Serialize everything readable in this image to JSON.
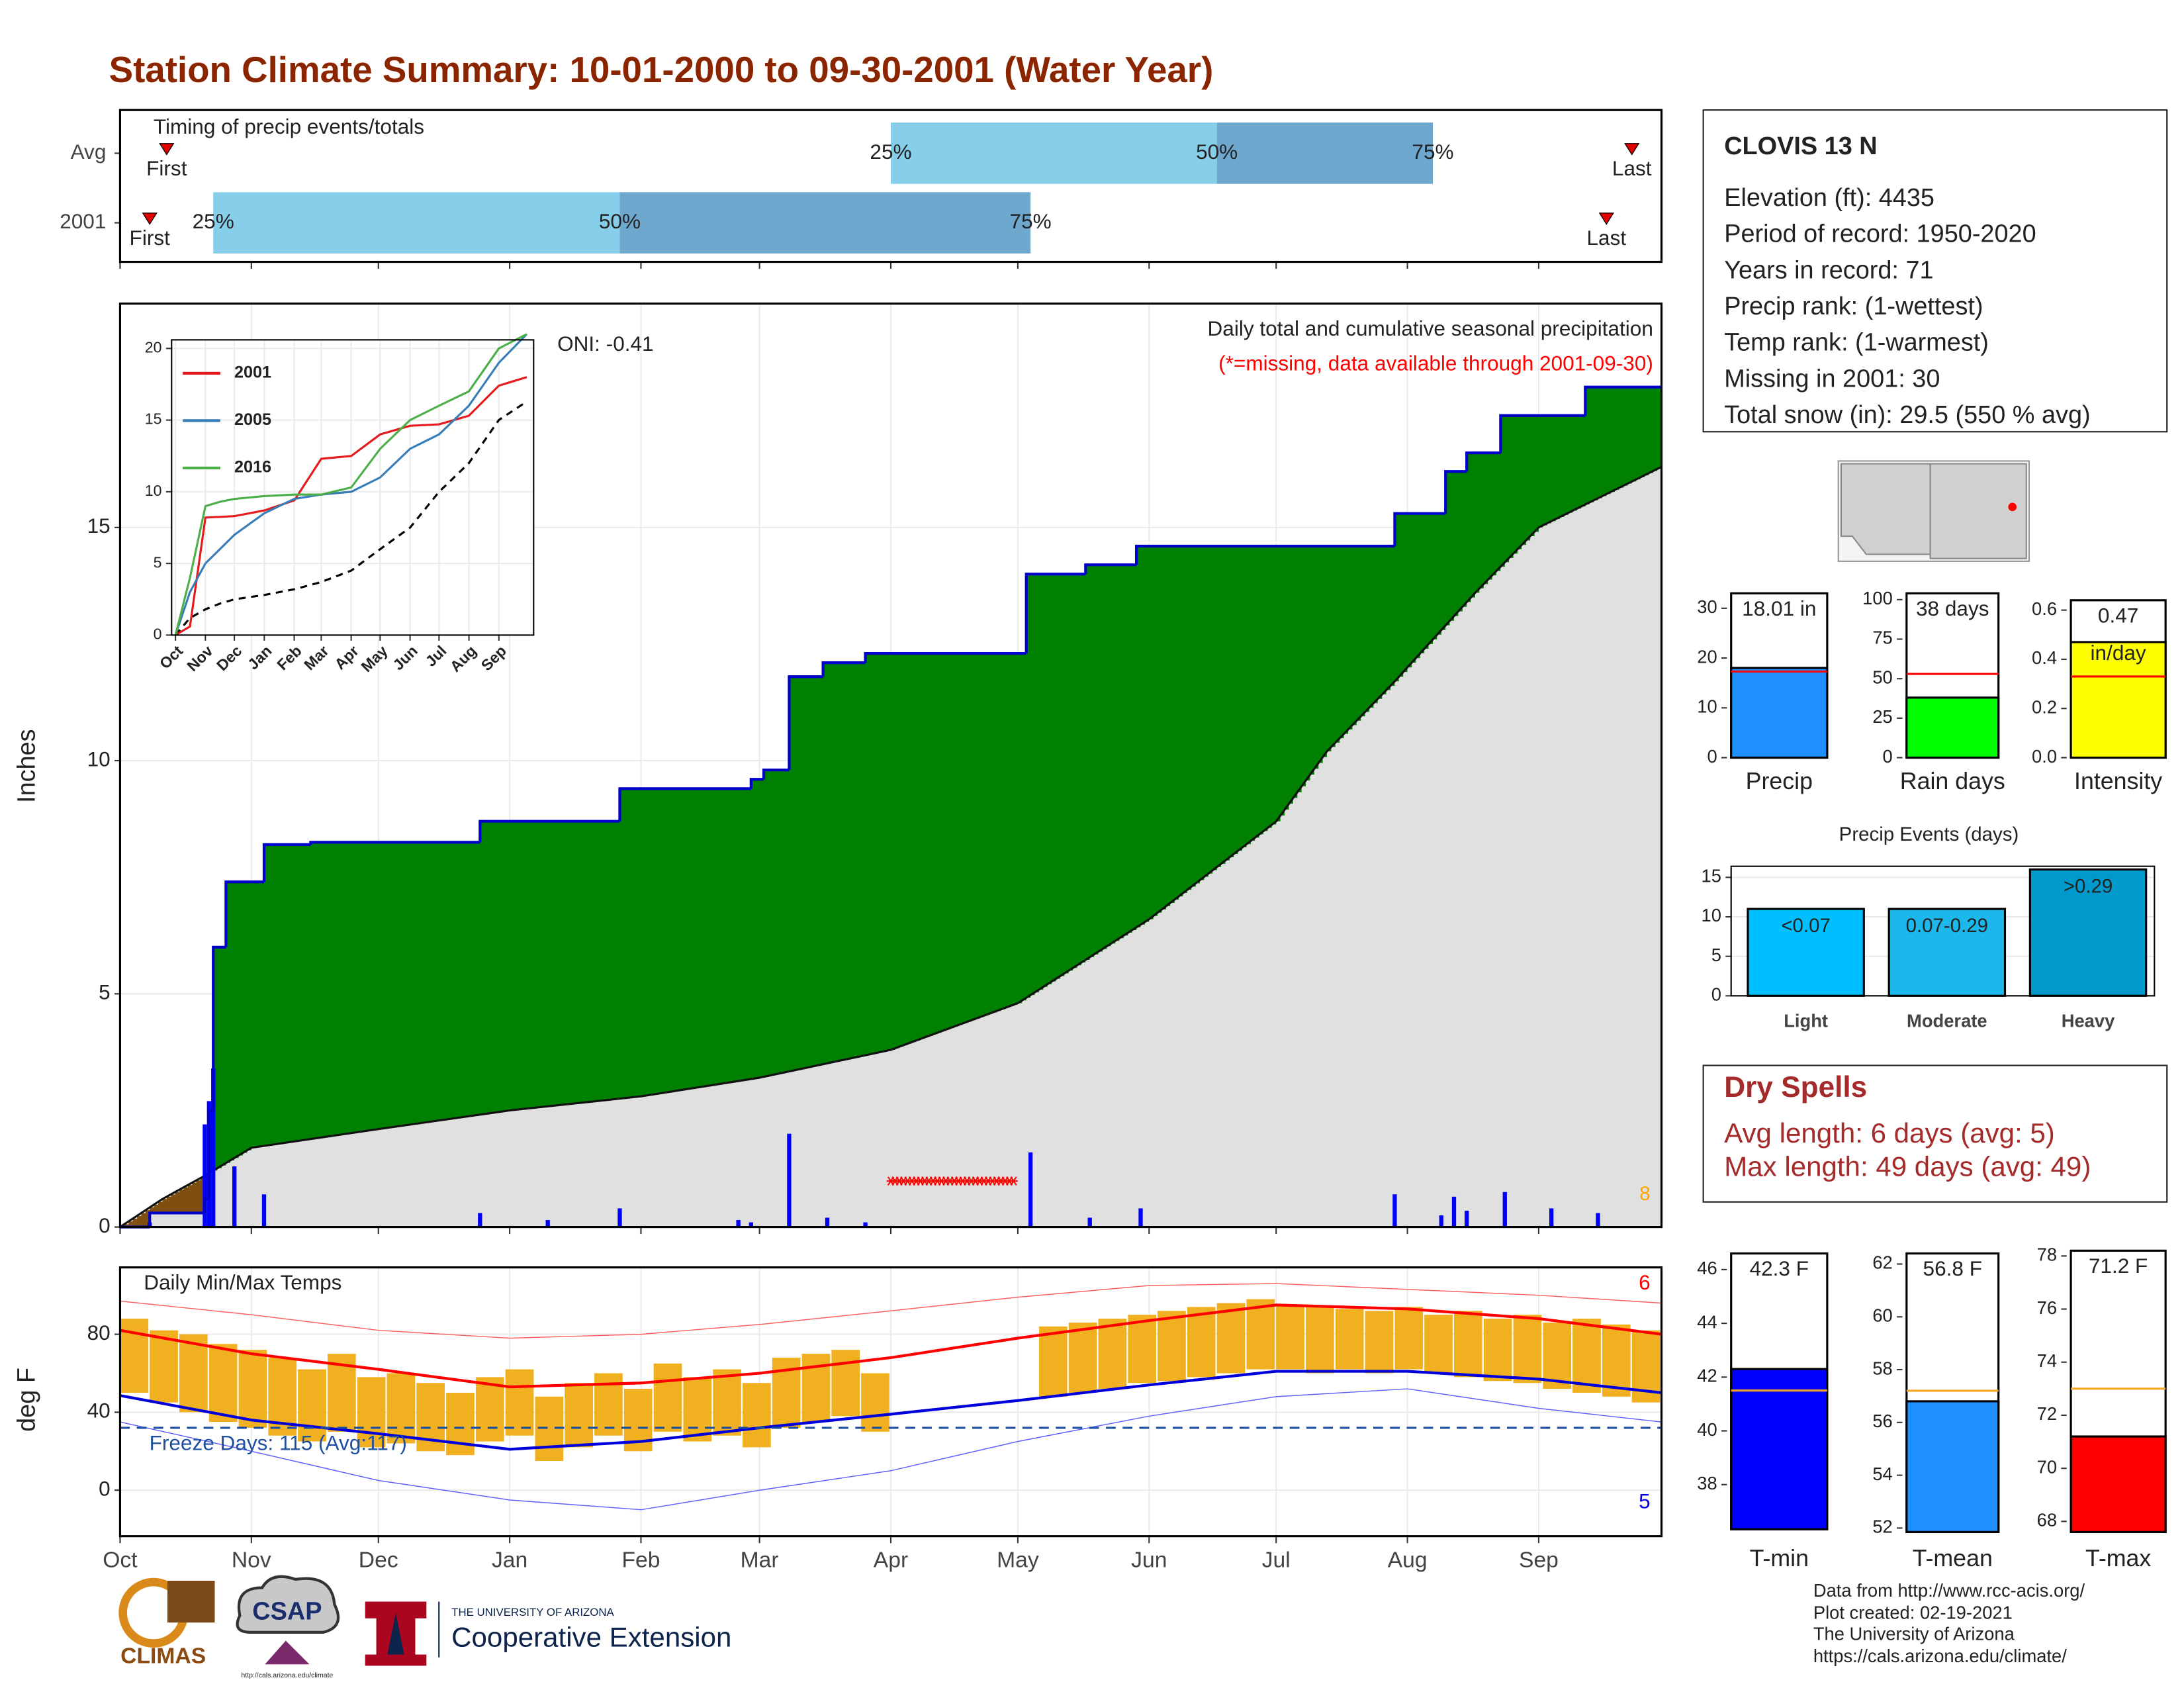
{
  "title": "Station Climate Summary: 10-01-2000 to 09-30-2001 (Water Year)",
  "station": {
    "name": "CLOVIS 13 N",
    "lines": [
      "Elevation (ft): 4435",
      "Period of record: 1950-2020",
      "Years in record: 71",
      "Precip rank:  (1-wettest)",
      "Temp rank:  (1-warmest)",
      "Missing in 2001: 30",
      "Total snow (in): 29.5 (550 % avg)"
    ]
  },
  "dry_spells": {
    "title": "Dry Spells",
    "lines": [
      "Avg length: 6 days (avg: 5)",
      "Max length: 49 days (avg: 49)"
    ]
  },
  "footer": {
    "lines": [
      "Data from http://www.rcc-acis.org/",
      "Plot created: 02-19-2021",
      "The University of Arizona",
      "https://cals.arizona.edu/climate/"
    ]
  },
  "logos": {
    "climas": "CLIMAS",
    "csap": "CSAP",
    "csap_url": "http://cals.arizona.edu/climate",
    "ua": "THE UNIVERSITY OF ARIZONA",
    "ext": "Cooperative Extension"
  },
  "chart_data": [
    {
      "type": "timing",
      "title": "Timing of precip events/totals",
      "xlim": [
        0,
        364
      ],
      "rows": [
        {
          "label": "Avg",
          "first": 11,
          "p25": 182,
          "p50": 259,
          "p75": 310,
          "last": 357
        },
        {
          "label": "2001",
          "first": 7,
          "p25": 22,
          "p50": 118,
          "p75": 215,
          "last": 351
        }
      ],
      "marker_labels": {
        "first": "First",
        "last": "Last",
        "p25": "25%",
        "p50": "50%",
        "p75": "75%"
      },
      "colors": [
        "#87ceeb",
        "#6fa8cf"
      ],
      "marker_color": "#e00000"
    },
    {
      "type": "cumulative_precip",
      "title": "Daily total and cumulative seasonal precipitation",
      "subtitle": "(*=missing, data available through 2001-09-30)",
      "annotation": "ONI: -0.41",
      "corner_note": "8",
      "y_label": "Inches",
      "xlim": [
        0,
        364
      ],
      "ylim": [
        0,
        19.8
      ],
      "yticks": [
        0,
        5,
        10,
        15
      ],
      "grid": true,
      "cumulative": {
        "color": "#0000cd",
        "fill": "#008000",
        "x": [
          0,
          7,
          20,
          21,
          22,
          25,
          34,
          45,
          85,
          118,
          149,
          152,
          158,
          166,
          176,
          214,
          228,
          240,
          301,
          313,
          318,
          326,
          346
        ],
        "values": [
          0,
          0.3,
          0.6,
          2.5,
          6.0,
          7.4,
          8.2,
          8.25,
          8.7,
          9.4,
          9.6,
          9.8,
          11.8,
          12.1,
          12.3,
          14.0,
          14.2,
          14.6,
          15.3,
          16.2,
          16.6,
          17.4,
          18.01
        ]
      },
      "average": {
        "color": "#111111",
        "fill": "#e0e0e0",
        "deficit_fill": "#7f4f12",
        "x": [
          0,
          10,
          20,
          31,
          61,
          92,
          123,
          151,
          182,
          212,
          243,
          273,
          285,
          301,
          320,
          335,
          364
        ],
        "values": [
          0,
          0.6,
          1.1,
          1.7,
          2.1,
          2.5,
          2.8,
          3.2,
          3.8,
          4.8,
          6.6,
          8.7,
          10.2,
          11.7,
          13.6,
          15.0,
          16.3
        ]
      },
      "daily": {
        "color": "#0000ff",
        "x": [
          7,
          20,
          21,
          22,
          27,
          34,
          85,
          101,
          118,
          146,
          149,
          158,
          167,
          176,
          215,
          229,
          241,
          301,
          312,
          315,
          318,
          327,
          338,
          349
        ],
        "values": [
          0.1,
          2.2,
          2.7,
          3.4,
          1.3,
          0.7,
          0.3,
          0.15,
          0.4,
          0.15,
          0.1,
          2.0,
          0.2,
          0.1,
          1.6,
          0.2,
          0.4,
          0.7,
          0.25,
          0.65,
          0.35,
          0.75,
          0.4,
          0.3
        ]
      },
      "missing": {
        "from": 182,
        "to": 211,
        "color": "#ff0000"
      }
    },
    {
      "type": "line",
      "xlim": [
        -4,
        371
      ],
      "ylim": [
        0,
        20.6
      ],
      "yticks": [
        0,
        5,
        10,
        15,
        20
      ],
      "xticks": [
        {
          "value": 0,
          "label": "Oct"
        },
        {
          "value": 31,
          "label": "Nov"
        },
        {
          "value": 61,
          "label": "Dec"
        },
        {
          "value": 92,
          "label": "Jan"
        },
        {
          "value": 123,
          "label": "Feb"
        },
        {
          "value": 151,
          "label": "Mar"
        },
        {
          "value": 182,
          "label": "Apr"
        },
        {
          "value": 212,
          "label": "May"
        },
        {
          "value": 243,
          "label": "Jun"
        },
        {
          "value": 273,
          "label": "Jul"
        },
        {
          "value": 304,
          "label": "Aug"
        },
        {
          "value": 335,
          "label": "Sep"
        }
      ],
      "x": [
        0,
        15,
        31,
        46,
        61,
        92,
        123,
        151,
        182,
        212,
        243,
        273,
        304,
        335,
        364
      ],
      "series": [
        {
          "name": "2001",
          "color": "#e41a1c",
          "values": [
            0,
            0.6,
            8.2,
            8.25,
            8.3,
            8.7,
            9.4,
            12.3,
            12.5,
            14.0,
            14.6,
            14.7,
            15.3,
            17.4,
            18.0
          ]
        },
        {
          "name": "2005",
          "color": "#377eb8",
          "values": [
            0,
            3,
            5,
            6,
            7,
            8.5,
            9.5,
            9.8,
            10,
            11,
            13,
            14,
            16,
            19,
            21
          ]
        },
        {
          "name": "2016",
          "color": "#4daf4a",
          "values": [
            0,
            4,
            9,
            9.3,
            9.5,
            9.7,
            9.8,
            9.8,
            10.3,
            13,
            15,
            16,
            17,
            20,
            21
          ]
        }
      ],
      "average": {
        "color": "#000000",
        "values": [
          0,
          1.2,
          1.8,
          2.2,
          2.5,
          2.8,
          3.2,
          3.7,
          4.5,
          6,
          7.5,
          10,
          12,
          15,
          16.3
        ]
      }
    },
    {
      "type": "temperature",
      "title": "Daily Min/Max Temps",
      "y_label": "deg F",
      "xlim": [
        0,
        364
      ],
      "ylim": [
        -23.6,
        114.3
      ],
      "yticks": [
        0,
        40,
        80
      ],
      "grid": true,
      "xticks": [
        {
          "value": 0,
          "label": "Oct"
        },
        {
          "value": 31,
          "label": "Nov"
        },
        {
          "value": 61,
          "label": "Dec"
        },
        {
          "value": 92,
          "label": "Jan"
        },
        {
          "value": 123,
          "label": "Feb"
        },
        {
          "value": 151,
          "label": "Mar"
        },
        {
          "value": 182,
          "label": "Apr"
        },
        {
          "value": 212,
          "label": "May"
        },
        {
          "value": 243,
          "label": "Jun"
        },
        {
          "value": 273,
          "label": "Jul"
        },
        {
          "value": 304,
          "label": "Aug"
        },
        {
          "value": 335,
          "label": "Sep"
        }
      ],
      "daily": {
        "color": "#f0b020",
        "x": [
          0,
          7,
          14,
          21,
          28,
          35,
          42,
          49,
          56,
          63,
          70,
          77,
          84,
          91,
          98,
          105,
          112,
          119,
          126,
          133,
          140,
          147,
          154,
          161,
          168,
          175,
          182,
          189,
          196,
          203,
          210,
          217,
          224,
          231,
          238,
          245,
          252,
          259,
          266,
          273,
          280,
          287,
          294,
          301,
          308,
          315,
          322,
          329,
          336,
          343,
          350,
          357
        ],
        "min": [
          50,
          45,
          40,
          35,
          32,
          28,
          25,
          30,
          22,
          24,
          20,
          18,
          25,
          28,
          15,
          22,
          28,
          20,
          30,
          25,
          28,
          22,
          32,
          35,
          38,
          30,
          null,
          null,
          null,
          null,
          null,
          48,
          50,
          52,
          55,
          56,
          58,
          60,
          62,
          62,
          60,
          62,
          60,
          62,
          60,
          58,
          56,
          55,
          52,
          50,
          48,
          45
        ],
        "max": [
          88,
          82,
          80,
          75,
          72,
          68,
          62,
          70,
          58,
          60,
          55,
          50,
          58,
          62,
          48,
          55,
          60,
          52,
          65,
          58,
          62,
          55,
          68,
          70,
          72,
          60,
          null,
          null,
          null,
          null,
          null,
          84,
          86,
          88,
          90,
          92,
          94,
          96,
          98,
          95,
          94,
          93,
          92,
          94,
          90,
          92,
          88,
          90,
          86,
          88,
          85,
          82
        ]
      },
      "normals_x": [
        0,
        31,
        61,
        92,
        123,
        151,
        182,
        212,
        243,
        273,
        304,
        335,
        364
      ],
      "normal_max": {
        "color": "#ff0000",
        "values": [
          82,
          70,
          62,
          53,
          55,
          60,
          68,
          78,
          87,
          95,
          93,
          88,
          80
        ]
      },
      "normal_min": {
        "color": "#0000dd",
        "values": [
          48.6,
          36,
          29,
          21,
          25,
          32,
          39,
          46,
          54,
          61,
          61,
          57,
          50
        ]
      },
      "record_max": {
        "color": "#ff6060",
        "values": [
          97,
          90,
          82,
          78,
          80,
          85,
          92,
          99,
          105,
          106,
          103,
          100,
          96
        ]
      },
      "record_min": {
        "color": "#6060ff",
        "values": [
          35,
          20,
          5,
          -5,
          -10,
          0,
          10,
          25,
          38,
          48,
          52,
          42,
          35
        ]
      },
      "freeze": {
        "value": 32,
        "label": "Freeze Days: 115 (Avg:117)",
        "color": "#1f4fa0"
      },
      "corner_labels": {
        "top": "6",
        "bottom": "5"
      }
    },
    {
      "type": "single_bar",
      "categories": [
        "Precip"
      ],
      "values": [
        18.01
      ],
      "value_labels": [
        "18.01 in"
      ],
      "average": 17.3,
      "color": "#1e90ff",
      "ylim": [
        0,
        33
      ],
      "yticks": [
        0,
        10,
        20,
        30
      ]
    },
    {
      "type": "single_bar",
      "categories": [
        "Rain days"
      ],
      "values": [
        38
      ],
      "value_labels": [
        "38 days"
      ],
      "average": 53,
      "color": "#00ff00",
      "ylim": [
        0,
        104
      ],
      "yticks": [
        0,
        25,
        50,
        75,
        100
      ]
    },
    {
      "type": "single_bar",
      "categories": [
        "Intensity"
      ],
      "values": [
        0.47
      ],
      "unit": "in/day",
      "average": 0.33,
      "color": "#ffff00",
      "ylim": [
        0,
        0.64
      ],
      "yticks": [
        {
          "value": 0,
          "label": "0.0"
        },
        0.2,
        0.4,
        0.6
      ]
    },
    {
      "type": "bar",
      "title": "Precip Events (days)",
      "categories": [
        "Light",
        "Moderate",
        "Heavy"
      ],
      "values": [
        11,
        11,
        16
      ],
      "bar_labels": [
        "<0.07",
        "0.07-0.29",
        ">0.29"
      ],
      "colors": [
        "#00bfff",
        "#1cb8ec",
        "#0099cc"
      ],
      "ylim": [
        0,
        16.4
      ],
      "yticks": [
        0,
        5,
        10,
        15
      ],
      "grid": true
    },
    {
      "type": "single_bar",
      "categories": [
        "T-min"
      ],
      "values": [
        42.3
      ],
      "value_labels": [
        "42.3 F"
      ],
      "average": 41.5,
      "average_color": "#f5a623",
      "color": "#0000ff",
      "ylim": [
        36.34,
        46.6
      ],
      "yticks": [
        38,
        40,
        42,
        44,
        46
      ]
    },
    {
      "type": "single_bar",
      "categories": [
        "T-mean"
      ],
      "values": [
        56.8
      ],
      "value_labels": [
        "56.8 F"
      ],
      "average": 57.2,
      "average_color": "#f5a623",
      "color": "#1e90ff",
      "ylim": [
        51.85,
        62.4
      ],
      "yticks": [
        52,
        54,
        56,
        58,
        60,
        62
      ]
    },
    {
      "type": "single_bar",
      "categories": [
        "T-max"
      ],
      "values": [
        71.2
      ],
      "value_labels": [
        "71.2 F"
      ],
      "average": 73.0,
      "average_color": "#f5a623",
      "color": "#ff0000",
      "ylim": [
        67.6,
        78.2
      ],
      "yticks": [
        68,
        70,
        72,
        74,
        76,
        78
      ]
    }
  ]
}
